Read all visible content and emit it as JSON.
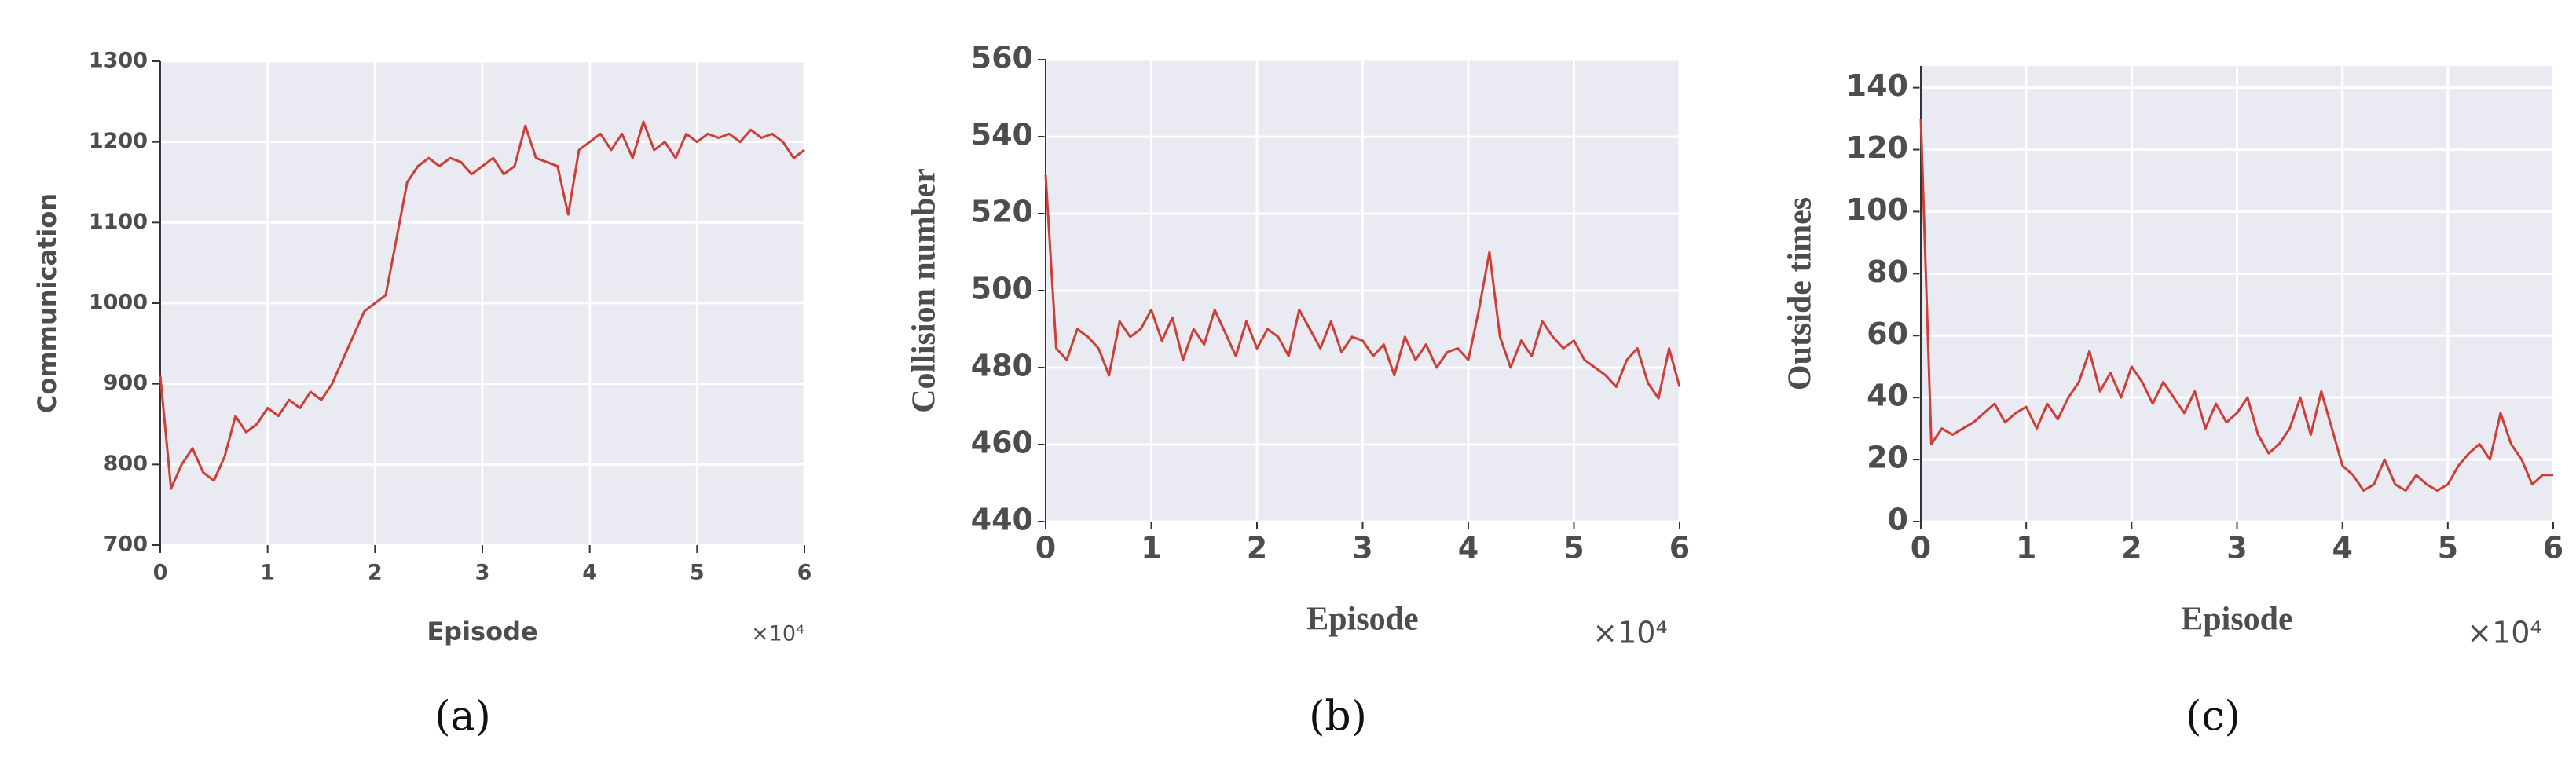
{
  "chart_data": [
    {
      "type": "line",
      "caption": "(a)",
      "x_label": "Episode",
      "y_label": "Communication",
      "x_multiplier": "×10⁴",
      "x": [
        0,
        1000,
        2000,
        3000,
        4000,
        5000,
        6000,
        7000,
        8000,
        9000,
        10000,
        11000,
        12000,
        13000,
        14000,
        15000,
        16000,
        17000,
        18000,
        19000,
        20000,
        21000,
        22000,
        23000,
        24000,
        25000,
        26000,
        27000,
        28000,
        29000,
        30000,
        31000,
        32000,
        33000,
        34000,
        35000,
        36000,
        37000,
        38000,
        39000,
        40000,
        41000,
        42000,
        43000,
        44000,
        45000,
        46000,
        47000,
        48000,
        49000,
        50000,
        51000,
        52000,
        53000,
        54000,
        55000,
        56000,
        57000,
        58000,
        59000,
        60000
      ],
      "series": [
        {
          "color": "#cc3f37",
          "values": [
            910,
            770,
            800,
            820,
            790,
            780,
            810,
            860,
            840,
            850,
            870,
            860,
            880,
            870,
            890,
            880,
            900,
            930,
            960,
            990,
            1000,
            1010,
            1080,
            1150,
            1170,
            1180,
            1170,
            1180,
            1175,
            1160,
            1170,
            1180,
            1160,
            1170,
            1220,
            1180,
            1175,
            1170,
            1110,
            1190,
            1200,
            1210,
            1190,
            1210,
            1180,
            1225,
            1190,
            1200,
            1180,
            1210,
            1200,
            1210,
            1205,
            1210,
            1200,
            1215,
            1205,
            1210,
            1200,
            1180,
            1190
          ]
        }
      ],
      "xlim": [
        0,
        60000
      ],
      "xticks": [
        {
          "value": 0,
          "label": "0"
        },
        {
          "value": 10000,
          "label": "1"
        },
        {
          "value": 20000,
          "label": "2"
        },
        {
          "value": 30000,
          "label": "3"
        },
        {
          "value": 40000,
          "label": "4"
        },
        {
          "value": 50000,
          "label": "5"
        },
        {
          "value": 60000,
          "label": "6"
        }
      ],
      "ylim": [
        700,
        1300
      ],
      "yticks": [
        700,
        800,
        900,
        1000,
        1100,
        1200,
        1300
      ],
      "grid": true
    },
    {
      "type": "line",
      "caption": "(b)",
      "x_label": "Episode",
      "y_label": "Collision number",
      "x_multiplier": "×10⁴",
      "x": [
        0,
        1000,
        2000,
        3000,
        4000,
        5000,
        6000,
        7000,
        8000,
        9000,
        10000,
        11000,
        12000,
        13000,
        14000,
        15000,
        16000,
        17000,
        18000,
        19000,
        20000,
        21000,
        22000,
        23000,
        24000,
        25000,
        26000,
        27000,
        28000,
        29000,
        30000,
        31000,
        32000,
        33000,
        34000,
        35000,
        36000,
        37000,
        38000,
        39000,
        40000,
        41000,
        42000,
        43000,
        44000,
        45000,
        46000,
        47000,
        48000,
        49000,
        50000,
        51000,
        52000,
        53000,
        54000,
        55000,
        56000,
        57000,
        58000,
        59000,
        60000
      ],
      "series": [
        {
          "color": "#cc3f37",
          "values": [
            530,
            485,
            482,
            490,
            488,
            485,
            478,
            492,
            488,
            490,
            495,
            487,
            493,
            482,
            490,
            486,
            495,
            489,
            483,
            492,
            485,
            490,
            488,
            483,
            495,
            490,
            485,
            492,
            484,
            488,
            487,
            483,
            486,
            478,
            488,
            482,
            486,
            480,
            484,
            485,
            482,
            495,
            510,
            488,
            480,
            487,
            483,
            492,
            488,
            485,
            487,
            482,
            480,
            478,
            475,
            482,
            485,
            476,
            472,
            485,
            475
          ]
        }
      ],
      "xlim": [
        0,
        60000
      ],
      "xticks": [
        {
          "value": 0,
          "label": "0"
        },
        {
          "value": 10000,
          "label": "1"
        },
        {
          "value": 20000,
          "label": "2"
        },
        {
          "value": 30000,
          "label": "3"
        },
        {
          "value": 40000,
          "label": "4"
        },
        {
          "value": 50000,
          "label": "5"
        },
        {
          "value": 60000,
          "label": "6"
        }
      ],
      "ylim": [
        440,
        560
      ],
      "yticks": [
        440,
        460,
        480,
        500,
        520,
        540,
        560
      ],
      "grid": true
    },
    {
      "type": "line",
      "caption": "(c)",
      "x_label": "Episode",
      "y_label": "Outside times",
      "x_multiplier": "×10⁴",
      "x": [
        0,
        1000,
        2000,
        3000,
        4000,
        5000,
        6000,
        7000,
        8000,
        9000,
        10000,
        11000,
        12000,
        13000,
        14000,
        15000,
        16000,
        17000,
        18000,
        19000,
        20000,
        21000,
        22000,
        23000,
        24000,
        25000,
        26000,
        27000,
        28000,
        29000,
        30000,
        31000,
        32000,
        33000,
        34000,
        35000,
        36000,
        37000,
        38000,
        39000,
        40000,
        41000,
        42000,
        43000,
        44000,
        45000,
        46000,
        47000,
        48000,
        49000,
        50000,
        51000,
        52000,
        53000,
        54000,
        55000,
        56000,
        57000,
        58000,
        59000,
        60000
      ],
      "series": [
        {
          "color": "#cc3f37",
          "values": [
            130,
            25,
            30,
            28,
            30,
            32,
            35,
            38,
            32,
            35,
            37,
            30,
            38,
            33,
            40,
            45,
            55,
            42,
            48,
            40,
            50,
            45,
            38,
            45,
            40,
            35,
            42,
            30,
            38,
            32,
            35,
            40,
            28,
            22,
            25,
            30,
            40,
            28,
            42,
            30,
            18,
            15,
            10,
            12,
            20,
            12,
            10,
            15,
            12,
            10,
            12,
            18,
            22,
            25,
            20,
            35,
            25,
            20,
            12,
            15,
            15
          ]
        }
      ],
      "xlim": [
        0,
        60000
      ],
      "xticks": [
        {
          "value": 0,
          "label": "0"
        },
        {
          "value": 10000,
          "label": "1"
        },
        {
          "value": 20000,
          "label": "2"
        },
        {
          "value": 30000,
          "label": "3"
        },
        {
          "value": 40000,
          "label": "4"
        },
        {
          "value": 50000,
          "label": "5"
        },
        {
          "value": 60000,
          "label": "6"
        }
      ],
      "ylim": [
        0,
        147
      ],
      "yticks": [
        0,
        20,
        40,
        60,
        80,
        100,
        120,
        140
      ],
      "grid": true
    }
  ]
}
